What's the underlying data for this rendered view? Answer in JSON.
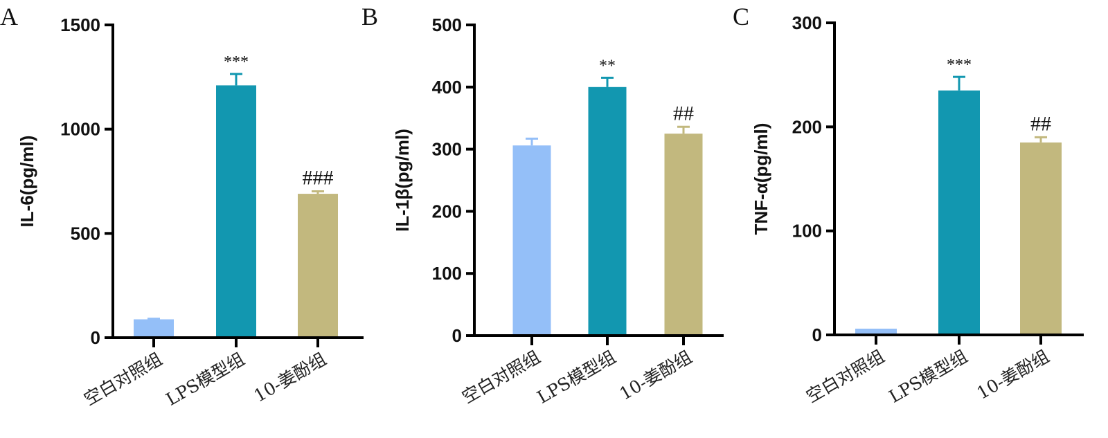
{
  "chart_data": [
    {
      "type": "bar",
      "panel": "A",
      "ylabel": "IL-6(pg/ml)",
      "ylim": [
        0,
        1500
      ],
      "yticks": [
        0,
        500,
        1000,
        1500
      ],
      "categories": [
        "空白对照组",
        "LPS模型组",
        "10-姜酚组"
      ],
      "values": [
        88,
        1210,
        690
      ],
      "errors": [
        3,
        55,
        12
      ],
      "significance": [
        "",
        "***",
        "###"
      ],
      "colors": [
        "#94BFF8",
        "#1297B0",
        "#C2B87E"
      ]
    },
    {
      "type": "bar",
      "panel": "B",
      "ylabel": "IL-1β(pg/ml)",
      "ylim": [
        0,
        500
      ],
      "yticks": [
        0,
        100,
        200,
        300,
        400,
        500
      ],
      "categories": [
        "空白对照组",
        "LPS模型组",
        "10-姜酚组"
      ],
      "values": [
        306,
        400,
        325
      ],
      "errors": [
        11,
        15,
        11
      ],
      "significance": [
        "",
        "**",
        "##"
      ],
      "colors": [
        "#94BFF8",
        "#1297B0",
        "#C2B87E"
      ]
    },
    {
      "type": "bar",
      "panel": "C",
      "ylabel": "TNF-α(pg/ml)",
      "ylim": [
        0,
        300
      ],
      "yticks": [
        0,
        100,
        200,
        300
      ],
      "categories": [
        "空白对照组",
        "LPS模型组",
        "10-姜酚组"
      ],
      "values": [
        6,
        235,
        185
      ],
      "errors": [
        0,
        13,
        5
      ],
      "significance": [
        "",
        "***",
        "##"
      ],
      "colors": [
        "#94BFF8",
        "#1297B0",
        "#C2B87E"
      ]
    }
  ]
}
